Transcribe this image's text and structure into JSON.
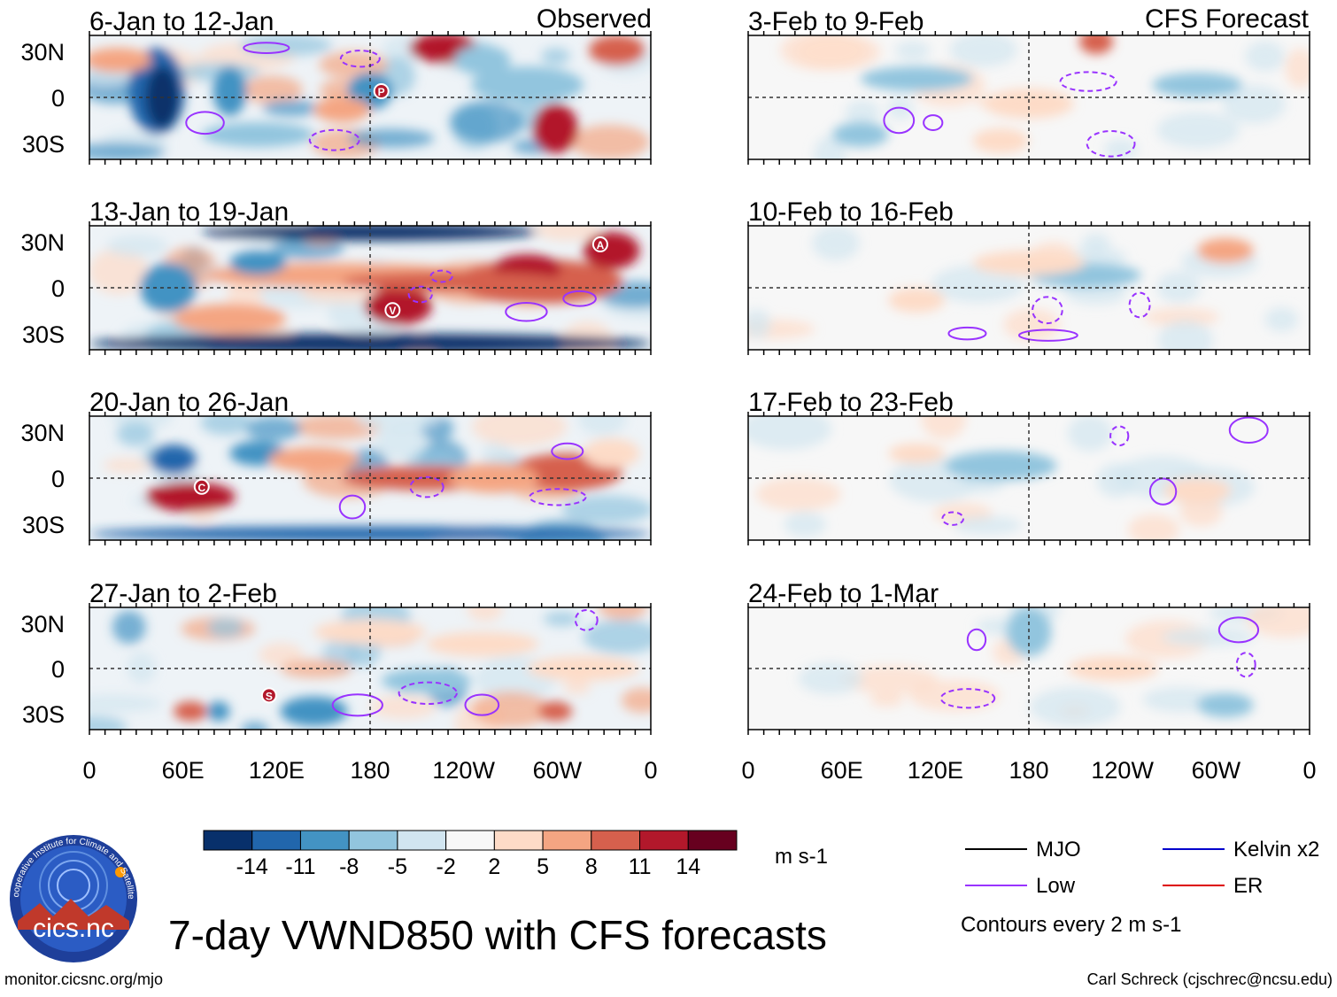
{
  "chart_data": {
    "type": "heatmap",
    "title": "7-day VWND850 with CFS forecasts",
    "variable": "VWND850",
    "units": "m s-1",
    "observed_label": "Observed",
    "forecast_label": "CFS Forecast",
    "x_ticks": [
      "0",
      "60E",
      "120E",
      "180",
      "120W",
      "60W",
      "0"
    ],
    "y_ticks": [
      "30N",
      "0",
      "30S"
    ],
    "panels_observed": [
      {
        "period": "6-Jan to 12-Jan",
        "markers": [
          "P"
        ]
      },
      {
        "period": "13-Jan to 19-Jan",
        "markers": [
          "A",
          "V"
        ]
      },
      {
        "period": "20-Jan to 26-Jan",
        "markers": [
          "C"
        ]
      },
      {
        "period": "27-Jan to 2-Feb",
        "markers": [
          "S"
        ]
      }
    ],
    "panels_forecast": [
      {
        "period": "3-Feb to 9-Feb"
      },
      {
        "period": "10-Feb to 16-Feb"
      },
      {
        "period": "17-Feb to 23-Feb"
      },
      {
        "period": "24-Feb to 1-Mar"
      }
    ],
    "colorbar": {
      "levels": [
        "-14",
        "-11",
        "-8",
        "-5",
        "-2",
        "2",
        "5",
        "8",
        "11",
        "14"
      ],
      "colors": [
        "#08306b",
        "#2166ac",
        "#4393c3",
        "#92c5de",
        "#d1e5f0",
        "#f7f7f7",
        "#fddbc7",
        "#f4a582",
        "#d6604d",
        "#b2182b",
        "#67001f"
      ]
    },
    "legend": [
      {
        "label": "MJO",
        "color": "#000000"
      },
      {
        "label": "Kelvin x2",
        "color": "#0000cc"
      },
      {
        "label": "Low",
        "color": "#9933ff"
      },
      {
        "label": "ER",
        "color": "#dd0000"
      }
    ],
    "contour_note": "Contours every 2 m s-1"
  },
  "footer": {
    "logo_text": "cics.nc",
    "logo_ring_text": "Cooperative Institute for Climate and Satellites",
    "url": "monitor.cicsnc.org/mjo",
    "credit": "Carl Schreck (cjschrec@ncsu.edu)"
  }
}
